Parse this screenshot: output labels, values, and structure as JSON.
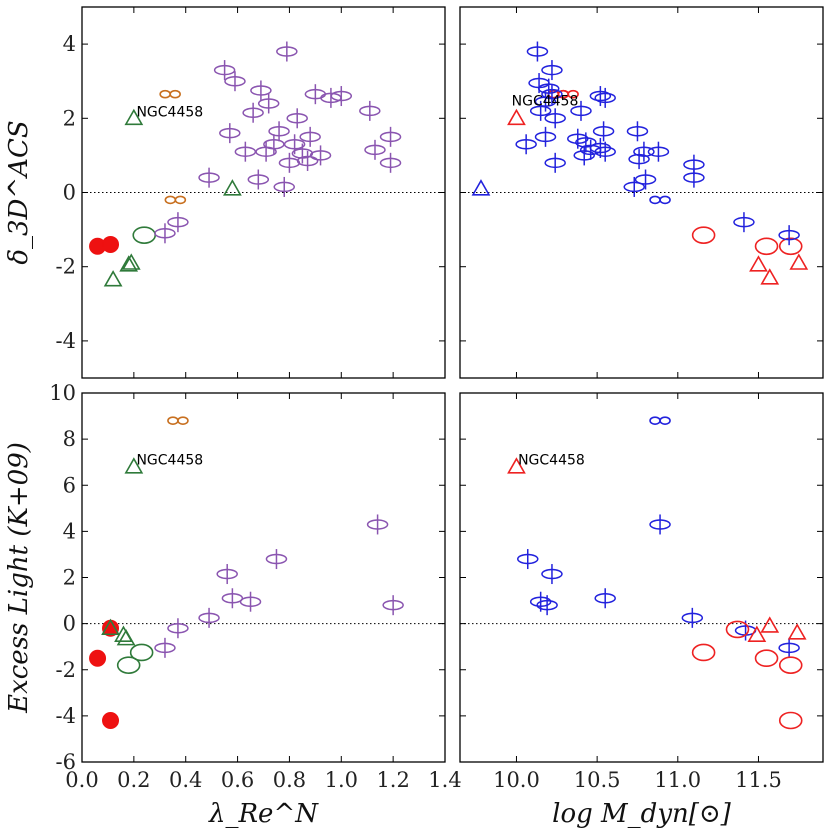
{
  "chart_data": [
    {
      "type": "scatter",
      "panel": "top-left",
      "xlabel": "",
      "ylabel": "δ_3D^ACS",
      "xlim": [
        0.0,
        1.4
      ],
      "ylim": [
        -5,
        5
      ],
      "yticks": [
        -4,
        -2,
        0,
        2,
        4
      ],
      "reference_line": 0,
      "annotations": [
        {
          "text": "NGC4458",
          "x": 0.21,
          "y": 2.05
        }
      ],
      "points": [
        {
          "x": 0.34,
          "y": 2.65,
          "marker": "infinity",
          "color": "#c87020"
        },
        {
          "x": 0.36,
          "y": -0.2,
          "marker": "infinity",
          "color": "#c87020"
        },
        {
          "x": 0.2,
          "y": 2.0,
          "marker": "triangle",
          "color": "#2f7a3a"
        },
        {
          "x": 0.58,
          "y": 0.1,
          "marker": "triangle",
          "color": "#2f7a3a"
        },
        {
          "x": 0.18,
          "y": -1.95,
          "marker": "triangle",
          "color": "#2f7a3a"
        },
        {
          "x": 0.19,
          "y": -1.9,
          "marker": "triangle",
          "color": "#2f7a3a"
        },
        {
          "x": 0.12,
          "y": -2.35,
          "marker": "triangle",
          "color": "#2f7a3a"
        },
        {
          "x": 0.24,
          "y": -1.15,
          "marker": "ellipse",
          "color": "#2f7a3a"
        },
        {
          "x": 0.06,
          "y": -1.45,
          "marker": "dot",
          "color": "#ee1111"
        },
        {
          "x": 0.11,
          "y": -1.4,
          "marker": "dot",
          "color": "#ee1111"
        },
        {
          "x": 0.32,
          "y": -1.1,
          "marker": "ellcross",
          "color": "#8a55b0"
        },
        {
          "x": 0.37,
          "y": -0.8,
          "marker": "ellcross",
          "color": "#8a55b0"
        },
        {
          "x": 0.49,
          "y": 0.4,
          "marker": "ellcross",
          "color": "#8a55b0"
        },
        {
          "x": 0.55,
          "y": 3.3,
          "marker": "ellcross",
          "color": "#8a55b0"
        },
        {
          "x": 0.57,
          "y": 1.6,
          "marker": "ellcross",
          "color": "#8a55b0"
        },
        {
          "x": 0.59,
          "y": 3.0,
          "marker": "ellcross",
          "color": "#8a55b0"
        },
        {
          "x": 0.63,
          "y": 1.1,
          "marker": "ellcross",
          "color": "#8a55b0"
        },
        {
          "x": 0.66,
          "y": 2.15,
          "marker": "ellcross",
          "color": "#8a55b0"
        },
        {
          "x": 0.68,
          "y": 0.35,
          "marker": "ellcross",
          "color": "#8a55b0"
        },
        {
          "x": 0.69,
          "y": 2.75,
          "marker": "ellcross",
          "color": "#8a55b0"
        },
        {
          "x": 0.71,
          "y": 1.1,
          "marker": "ellcross",
          "color": "#8a55b0"
        },
        {
          "x": 0.72,
          "y": 2.4,
          "marker": "ellcross",
          "color": "#8a55b0"
        },
        {
          "x": 0.74,
          "y": 1.3,
          "marker": "ellcross",
          "color": "#8a55b0"
        },
        {
          "x": 0.76,
          "y": 1.65,
          "marker": "ellcross",
          "color": "#8a55b0"
        },
        {
          "x": 0.78,
          "y": 0.15,
          "marker": "ellcross",
          "color": "#8a55b0"
        },
        {
          "x": 0.79,
          "y": 3.8,
          "marker": "ellcross",
          "color": "#8a55b0"
        },
        {
          "x": 0.8,
          "y": 0.8,
          "marker": "ellcross",
          "color": "#8a55b0"
        },
        {
          "x": 0.82,
          "y": 1.3,
          "marker": "ellcross",
          "color": "#8a55b0"
        },
        {
          "x": 0.83,
          "y": 2.0,
          "marker": "ellcross",
          "color": "#8a55b0"
        },
        {
          "x": 0.85,
          "y": 1.05,
          "marker": "ellcross",
          "color": "#8a55b0"
        },
        {
          "x": 0.87,
          "y": 0.85,
          "marker": "ellcross",
          "color": "#8a55b0"
        },
        {
          "x": 0.88,
          "y": 1.5,
          "marker": "ellcross",
          "color": "#8a55b0"
        },
        {
          "x": 0.9,
          "y": 2.65,
          "marker": "ellcross",
          "color": "#8a55b0"
        },
        {
          "x": 0.92,
          "y": 1.0,
          "marker": "ellcross",
          "color": "#8a55b0"
        },
        {
          "x": 0.96,
          "y": 2.55,
          "marker": "ellcross",
          "color": "#8a55b0"
        },
        {
          "x": 1.0,
          "y": 2.6,
          "marker": "ellcross",
          "color": "#8a55b0"
        },
        {
          "x": 1.11,
          "y": 2.2,
          "marker": "ellcross",
          "color": "#8a55b0"
        },
        {
          "x": 1.13,
          "y": 1.15,
          "marker": "ellcross",
          "color": "#8a55b0"
        },
        {
          "x": 1.19,
          "y": 1.5,
          "marker": "ellcross",
          "color": "#8a55b0"
        },
        {
          "x": 1.19,
          "y": 0.8,
          "marker": "ellcross",
          "color": "#8a55b0"
        }
      ]
    },
    {
      "type": "scatter",
      "panel": "top-right",
      "xlabel": "",
      "ylabel": "",
      "xlim": [
        9.65,
        11.9
      ],
      "ylim": [
        -5,
        5
      ],
      "reference_line": 0,
      "annotations": [
        {
          "text": "NGC4458",
          "x": 9.97,
          "y": 2.35
        }
      ],
      "points": [
        {
          "x": 10.0,
          "y": 2.0,
          "marker": "triangle",
          "color": "#ee2222"
        },
        {
          "x": 9.78,
          "y": 0.1,
          "marker": "triangle",
          "color": "#2222dd"
        },
        {
          "x": 10.26,
          "y": 2.65,
          "marker": "infinity",
          "color": "#ee2222"
        },
        {
          "x": 10.32,
          "y": 2.65,
          "marker": "infinity",
          "color": "#ee2222"
        },
        {
          "x": 11.16,
          "y": -1.15,
          "marker": "ellipse",
          "color": "#ee2222"
        },
        {
          "x": 11.55,
          "y": -1.45,
          "marker": "ellipse",
          "color": "#ee2222"
        },
        {
          "x": 11.7,
          "y": -1.45,
          "marker": "ellipse",
          "color": "#ee2222"
        },
        {
          "x": 11.5,
          "y": -1.95,
          "marker": "triangle",
          "color": "#ee2222"
        },
        {
          "x": 11.57,
          "y": -2.3,
          "marker": "triangle",
          "color": "#ee2222"
        },
        {
          "x": 11.75,
          "y": -1.9,
          "marker": "triangle",
          "color": "#ee2222"
        },
        {
          "x": 10.13,
          "y": 3.8,
          "marker": "ellcross",
          "color": "#2222dd"
        },
        {
          "x": 10.22,
          "y": 3.3,
          "marker": "ellcross",
          "color": "#2222dd"
        },
        {
          "x": 10.14,
          "y": 2.95,
          "marker": "ellcross",
          "color": "#2222dd"
        },
        {
          "x": 10.2,
          "y": 2.8,
          "marker": "ellcross",
          "color": "#2222dd"
        },
        {
          "x": 10.22,
          "y": 2.65,
          "marker": "ellcross",
          "color": "#2222dd"
        },
        {
          "x": 10.18,
          "y": 2.45,
          "marker": "ellcross",
          "color": "#2222dd"
        },
        {
          "x": 10.15,
          "y": 2.2,
          "marker": "ellcross",
          "color": "#2222dd"
        },
        {
          "x": 10.24,
          "y": 2.0,
          "marker": "ellcross",
          "color": "#2222dd"
        },
        {
          "x": 10.18,
          "y": 1.5,
          "marker": "ellcross",
          "color": "#2222dd"
        },
        {
          "x": 10.06,
          "y": 1.3,
          "marker": "ellcross",
          "color": "#2222dd"
        },
        {
          "x": 10.24,
          "y": 0.8,
          "marker": "ellcross",
          "color": "#2222dd"
        },
        {
          "x": 10.4,
          "y": 2.2,
          "marker": "ellcross",
          "color": "#2222dd"
        },
        {
          "x": 10.38,
          "y": 1.45,
          "marker": "ellcross",
          "color": "#2222dd"
        },
        {
          "x": 10.43,
          "y": 1.35,
          "marker": "ellcross",
          "color": "#2222dd"
        },
        {
          "x": 10.46,
          "y": 1.15,
          "marker": "ellcross",
          "color": "#2222dd"
        },
        {
          "x": 10.42,
          "y": 1.0,
          "marker": "ellcross",
          "color": "#2222dd"
        },
        {
          "x": 10.52,
          "y": 2.6,
          "marker": "ellcross",
          "color": "#2222dd"
        },
        {
          "x": 10.55,
          "y": 2.55,
          "marker": "ellcross",
          "color": "#2222dd"
        },
        {
          "x": 10.54,
          "y": 1.65,
          "marker": "ellcross",
          "color": "#2222dd"
        },
        {
          "x": 10.52,
          "y": 1.2,
          "marker": "ellcross",
          "color": "#2222dd"
        },
        {
          "x": 10.55,
          "y": 1.1,
          "marker": "ellcross",
          "color": "#2222dd"
        },
        {
          "x": 10.75,
          "y": 1.65,
          "marker": "ellcross",
          "color": "#2222dd"
        },
        {
          "x": 10.79,
          "y": 1.1,
          "marker": "ellcross",
          "color": "#2222dd"
        },
        {
          "x": 10.76,
          "y": 0.9,
          "marker": "ellcross",
          "color": "#2222dd"
        },
        {
          "x": 10.8,
          "y": 0.35,
          "marker": "ellcross",
          "color": "#2222dd"
        },
        {
          "x": 10.73,
          "y": 0.15,
          "marker": "ellcross",
          "color": "#2222dd"
        },
        {
          "x": 10.88,
          "y": 1.1,
          "marker": "ellcross",
          "color": "#2222dd"
        },
        {
          "x": 10.89,
          "y": -0.2,
          "marker": "infinity",
          "color": "#2222dd"
        },
        {
          "x": 11.1,
          "y": 0.75,
          "marker": "ellcross",
          "color": "#2222dd"
        },
        {
          "x": 11.1,
          "y": 0.4,
          "marker": "ellcross",
          "color": "#2222dd"
        },
        {
          "x": 11.41,
          "y": -0.8,
          "marker": "ellcross",
          "color": "#2222dd"
        },
        {
          "x": 11.69,
          "y": -1.15,
          "marker": "ellcross",
          "color": "#2222dd"
        }
      ]
    },
    {
      "type": "scatter",
      "panel": "bottom-left",
      "xlabel": "λ_Re^N",
      "ylabel": "Excess Light (K+09)",
      "xlim": [
        0.0,
        1.4
      ],
      "ylim": [
        -6,
        10
      ],
      "xticks": [
        0.0,
        0.2,
        0.4,
        0.6,
        0.8,
        1.0,
        1.2,
        1.4
      ],
      "yticks": [
        -6,
        -4,
        -2,
        0,
        2,
        4,
        6,
        8,
        10
      ],
      "reference_line": 0,
      "annotations": [
        {
          "text": "NGC4458",
          "x": 0.21,
          "y": 6.9
        }
      ],
      "points": [
        {
          "x": 0.37,
          "y": 8.8,
          "marker": "infinity",
          "color": "#c87020"
        },
        {
          "x": 0.2,
          "y": 6.8,
          "marker": "triangle",
          "color": "#2f7a3a"
        },
        {
          "x": 0.11,
          "y": -0.2,
          "marker": "dot",
          "color": "#ee1111"
        },
        {
          "x": 0.11,
          "y": -0.2,
          "marker": "triangle",
          "color": "#2f7a3a"
        },
        {
          "x": 0.16,
          "y": -0.5,
          "marker": "triangle",
          "color": "#2f7a3a"
        },
        {
          "x": 0.17,
          "y": -0.65,
          "marker": "triangle",
          "color": "#2f7a3a"
        },
        {
          "x": 0.06,
          "y": -1.5,
          "marker": "dot",
          "color": "#ee1111"
        },
        {
          "x": 0.11,
          "y": -4.2,
          "marker": "dot",
          "color": "#ee1111"
        },
        {
          "x": 0.18,
          "y": -1.8,
          "marker": "ellipse",
          "color": "#2f7a3a"
        },
        {
          "x": 0.23,
          "y": -1.25,
          "marker": "ellipse",
          "color": "#2f7a3a"
        },
        {
          "x": 0.32,
          "y": -1.05,
          "marker": "ellcross",
          "color": "#8a55b0"
        },
        {
          "x": 0.37,
          "y": -0.2,
          "marker": "ellcross",
          "color": "#8a55b0"
        },
        {
          "x": 0.49,
          "y": 0.25,
          "marker": "ellcross",
          "color": "#8a55b0"
        },
        {
          "x": 0.56,
          "y": 2.15,
          "marker": "ellcross",
          "color": "#8a55b0"
        },
        {
          "x": 0.58,
          "y": 1.1,
          "marker": "ellcross",
          "color": "#8a55b0"
        },
        {
          "x": 0.65,
          "y": 0.95,
          "marker": "ellcross",
          "color": "#8a55b0"
        },
        {
          "x": 0.75,
          "y": 2.8,
          "marker": "ellcross",
          "color": "#8a55b0"
        },
        {
          "x": 1.14,
          "y": 4.3,
          "marker": "ellcross",
          "color": "#8a55b0"
        },
        {
          "x": 1.2,
          "y": 0.8,
          "marker": "ellcross",
          "color": "#8a55b0"
        }
      ]
    },
    {
      "type": "scatter",
      "panel": "bottom-right",
      "xlabel": "log M_dyn[⊙]",
      "ylabel": "",
      "xlim": [
        9.65,
        11.9
      ],
      "ylim": [
        -6,
        10
      ],
      "xticks": [
        10.0,
        10.5,
        11.0,
        11.5
      ],
      "reference_line": 0,
      "annotations": [
        {
          "text": "NGC4458",
          "x": 10.01,
          "y": 6.9
        }
      ],
      "points": [
        {
          "x": 10.0,
          "y": 6.8,
          "marker": "triangle",
          "color": "#ee2222"
        },
        {
          "x": 10.89,
          "y": 8.8,
          "marker": "infinity",
          "color": "#2222dd"
        },
        {
          "x": 10.89,
          "y": 4.3,
          "marker": "ellcross",
          "color": "#2222dd"
        },
        {
          "x": 10.07,
          "y": 2.8,
          "marker": "ellcross",
          "color": "#2222dd"
        },
        {
          "x": 10.22,
          "y": 2.15,
          "marker": "ellcross",
          "color": "#2222dd"
        },
        {
          "x": 10.15,
          "y": 0.95,
          "marker": "ellcross",
          "color": "#2222dd"
        },
        {
          "x": 10.19,
          "y": 0.8,
          "marker": "ellcross",
          "color": "#2222dd"
        },
        {
          "x": 10.55,
          "y": 1.1,
          "marker": "ellcross",
          "color": "#2222dd"
        },
        {
          "x": 11.09,
          "y": 0.25,
          "marker": "ellcross",
          "color": "#2222dd"
        },
        {
          "x": 11.42,
          "y": -0.3,
          "marker": "ellcross",
          "color": "#2222dd"
        },
        {
          "x": 11.69,
          "y": -1.05,
          "marker": "ellcross",
          "color": "#2222dd"
        },
        {
          "x": 11.37,
          "y": -0.25,
          "marker": "ellipse",
          "color": "#ee2222"
        },
        {
          "x": 11.16,
          "y": -1.25,
          "marker": "ellipse",
          "color": "#ee2222"
        },
        {
          "x": 11.55,
          "y": -1.5,
          "marker": "ellipse",
          "color": "#ee2222"
        },
        {
          "x": 11.7,
          "y": -1.8,
          "marker": "ellipse",
          "color": "#ee2222"
        },
        {
          "x": 11.7,
          "y": -4.2,
          "marker": "ellipse",
          "color": "#ee2222"
        },
        {
          "x": 11.49,
          "y": -0.5,
          "marker": "triangle",
          "color": "#ee2222"
        },
        {
          "x": 11.57,
          "y": -0.1,
          "marker": "triangle",
          "color": "#ee2222"
        },
        {
          "x": 11.74,
          "y": -0.4,
          "marker": "triangle",
          "color": "#ee2222"
        }
      ]
    }
  ]
}
